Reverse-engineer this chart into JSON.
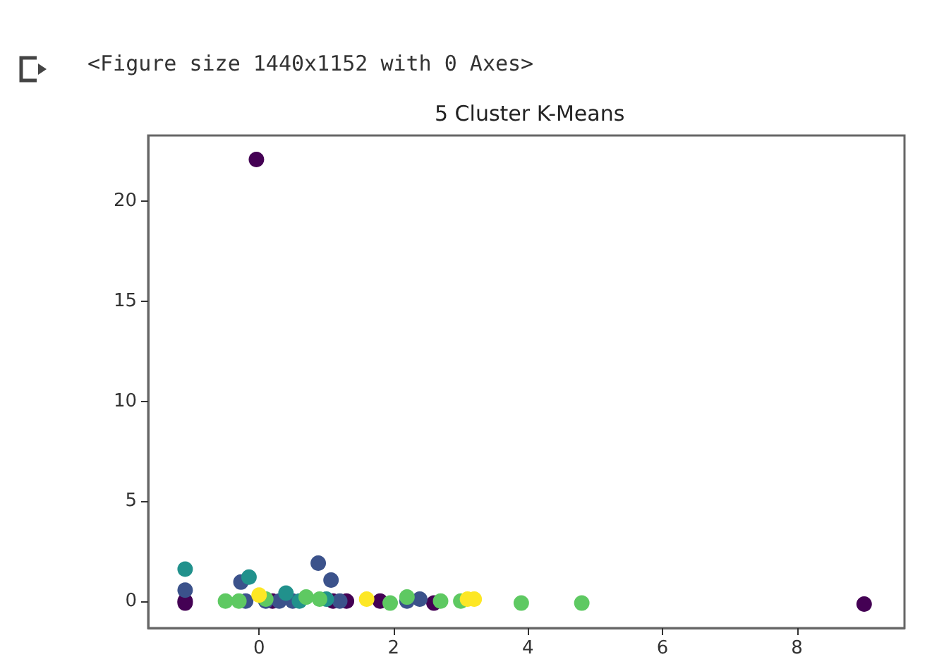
{
  "chart_data": {
    "type": "scatter",
    "title": "5 Cluster K-Means",
    "annotations": [
      "<Figure size 1440x1152 with 0 Axes>"
    ],
    "marker": "circle",
    "grid": false,
    "xlim": [
      -1.65,
      9.6
    ],
    "xticks": [
      0,
      2,
      4,
      6,
      8
    ],
    "ylim": [
      -1.35,
      23.3
    ],
    "yticks": [
      0,
      5,
      10,
      15,
      20
    ],
    "series": [
      {
        "color": "#440154",
        "x": [
          -1.1,
          -1.1,
          -0.04,
          0.2,
          0.88,
          1.1,
          1.3,
          1.65,
          1.8,
          2.6,
          3.1,
          9.0
        ],
        "values": [
          0,
          -0.1,
          22.1,
          0,
          null,
          0,
          0,
          null,
          0,
          -0.1,
          null,
          -0.15
        ]
      },
      {
        "color": "#3b528b",
        "x": [
          -1.1,
          -0.27,
          -0.2,
          0.1,
          0.3,
          0.5,
          0.88,
          1.07,
          1.2,
          2.2,
          2.39
        ],
        "values": [
          0.55,
          0.95,
          0,
          0,
          0,
          0,
          1.9,
          1.05,
          0,
          0,
          0.1
        ]
      },
      {
        "color": "#21918c",
        "x": [
          -1.1,
          -0.15,
          0.4,
          0.6,
          1.0
        ],
        "values": [
          1.6,
          1.2,
          0.4,
          0,
          0.1
        ]
      },
      {
        "color": "#5ec962",
        "x": [
          -0.5,
          -0.3,
          0.1,
          0.7,
          0.9,
          1.95,
          2.2,
          2.7,
          3.0,
          3.9,
          4.8
        ],
        "values": [
          0,
          0,
          0.1,
          0.2,
          0.1,
          -0.1,
          0.2,
          0,
          0,
          -0.1,
          -0.1
        ]
      },
      {
        "color": "#fde725",
        "x": [
          0,
          1.6,
          3.1,
          3.2
        ],
        "values": [
          0.3,
          0.1,
          0.1,
          0.1
        ]
      }
    ]
  }
}
